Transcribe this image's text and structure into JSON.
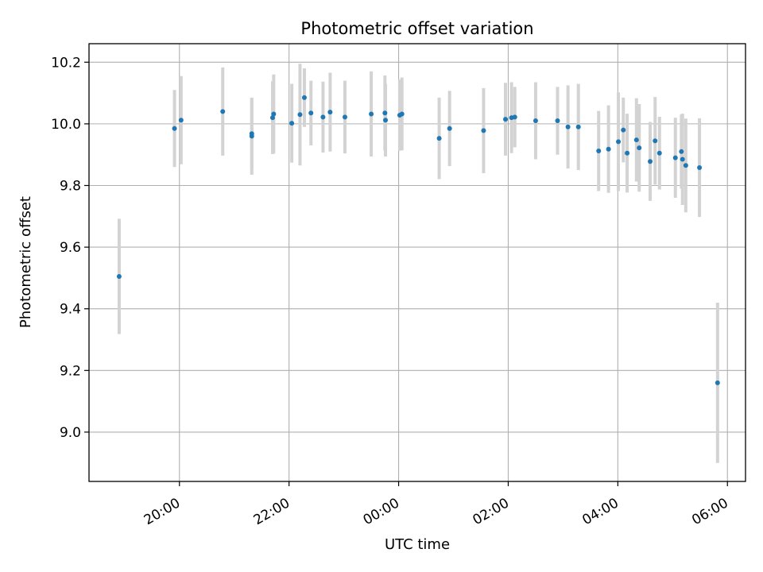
{
  "chart_data": {
    "type": "scatter",
    "title": "Photometric offset variation",
    "xlabel": "UTC time",
    "ylabel": "Photometric offset",
    "x_unit": "hours since 00:00 UTC",
    "x_ticks": [
      {
        "value": -4,
        "label": "20:00"
      },
      {
        "value": -2,
        "label": "22:00"
      },
      {
        "value": 0,
        "label": "00:00"
      },
      {
        "value": 2,
        "label": "02:00"
      },
      {
        "value": 4,
        "label": "04:00"
      },
      {
        "value": 6,
        "label": "06:00"
      }
    ],
    "y_ticks": [
      {
        "value": 9.0,
        "label": "9.0"
      },
      {
        "value": 9.2,
        "label": "9.2"
      },
      {
        "value": 9.4,
        "label": "9.4"
      },
      {
        "value": 9.6,
        "label": "9.6"
      },
      {
        "value": 9.8,
        "label": "9.8"
      },
      {
        "value": 10.0,
        "label": "10.0"
      },
      {
        "value": 10.2,
        "label": "10.2"
      }
    ],
    "xlim": [
      -5.65,
      6.33
    ],
    "ylim": [
      8.84,
      10.26
    ],
    "grid": true,
    "colors": {
      "points": "#1f77b4",
      "errorbars": "#d3d3d3",
      "grid": "#b0b0b0"
    },
    "series": [
      {
        "points": [
          {
            "x": -5.1,
            "y": 9.505,
            "err": 0.187
          },
          {
            "x": -4.09,
            "y": 9.985,
            "err": 0.125
          },
          {
            "x": -3.97,
            "y": 10.012,
            "err": 0.143
          },
          {
            "x": -3.21,
            "y": 10.04,
            "err": 0.143
          },
          {
            "x": -2.68,
            "y": 9.96,
            "err": 0.125
          },
          {
            "x": -2.68,
            "y": 9.968,
            "err": 0.115
          },
          {
            "x": -2.3,
            "y": 10.02,
            "err": 0.118
          },
          {
            "x": -2.28,
            "y": 10.032,
            "err": 0.128
          },
          {
            "x": -1.95,
            "y": 10.002,
            "err": 0.128
          },
          {
            "x": -1.8,
            "y": 10.03,
            "err": 0.165
          },
          {
            "x": -1.72,
            "y": 10.085,
            "err": 0.095
          },
          {
            "x": -1.6,
            "y": 10.035,
            "err": 0.105
          },
          {
            "x": -1.38,
            "y": 10.022,
            "err": 0.115
          },
          {
            "x": -1.25,
            "y": 10.038,
            "err": 0.128
          },
          {
            "x": -0.98,
            "y": 10.022,
            "err": 0.118
          },
          {
            "x": -0.5,
            "y": 10.032,
            "err": 0.138
          },
          {
            "x": -0.25,
            "y": 10.035,
            "err": 0.122
          },
          {
            "x": -0.24,
            "y": 10.012,
            "err": 0.118
          },
          {
            "x": 0.02,
            "y": 10.028,
            "err": 0.115
          },
          {
            "x": 0.06,
            "y": 10.032,
            "err": 0.118
          },
          {
            "x": 0.74,
            "y": 9.953,
            "err": 0.132
          },
          {
            "x": 0.93,
            "y": 9.985,
            "err": 0.122
          },
          {
            "x": 1.55,
            "y": 9.978,
            "err": 0.138
          },
          {
            "x": 1.95,
            "y": 10.015,
            "err": 0.118
          },
          {
            "x": 2.06,
            "y": 10.02,
            "err": 0.115
          },
          {
            "x": 2.12,
            "y": 10.022,
            "err": 0.098
          },
          {
            "x": 2.5,
            "y": 10.01,
            "err": 0.125
          },
          {
            "x": 2.9,
            "y": 10.01,
            "err": 0.11
          },
          {
            "x": 3.09,
            "y": 9.99,
            "err": 0.135
          },
          {
            "x": 3.28,
            "y": 9.99,
            "err": 0.14
          },
          {
            "x": 3.65,
            "y": 9.912,
            "err": 0.13
          },
          {
            "x": 3.83,
            "y": 9.918,
            "err": 0.142
          },
          {
            "x": 4.01,
            "y": 9.942,
            "err": 0.16
          },
          {
            "x": 4.1,
            "y": 9.98,
            "err": 0.105
          },
          {
            "x": 4.17,
            "y": 9.905,
            "err": 0.128
          },
          {
            "x": 4.34,
            "y": 9.948,
            "err": 0.135
          },
          {
            "x": 4.39,
            "y": 9.922,
            "err": 0.142
          },
          {
            "x": 4.59,
            "y": 9.878,
            "err": 0.128
          },
          {
            "x": 4.68,
            "y": 9.945,
            "err": 0.142
          },
          {
            "x": 4.76,
            "y": 9.905,
            "err": 0.118
          },
          {
            "x": 5.05,
            "y": 9.89,
            "err": 0.13
          },
          {
            "x": 5.16,
            "y": 9.91,
            "err": 0.12
          },
          {
            "x": 5.18,
            "y": 9.885,
            "err": 0.148
          },
          {
            "x": 5.24,
            "y": 9.865,
            "err": 0.152
          },
          {
            "x": 5.49,
            "y": 9.858,
            "err": 0.16
          },
          {
            "x": 5.82,
            "y": 9.16,
            "err": 0.26
          }
        ]
      }
    ]
  }
}
